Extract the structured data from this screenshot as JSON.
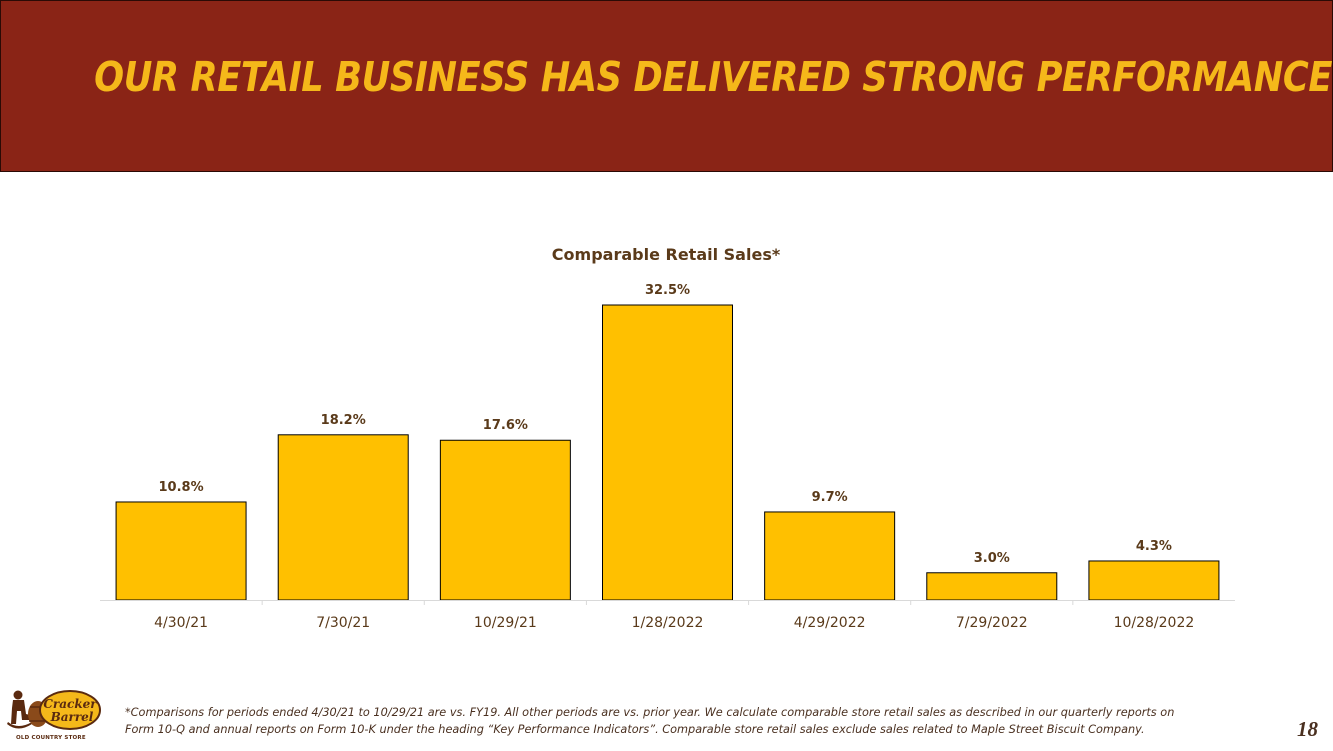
{
  "slide": {
    "title": "OUR RETAIL BUSINESS HAS DELIVERED STRONG PERFORMANCE",
    "footnote_line1": "*Comparisons for periods ended 4/30/21 to 10/29/21 are vs. FY19. All other periods are vs. prior year. We calculate comparable store retail sales as described in our quarterly reports on",
    "footnote_line2": "Form 10-Q and annual reports on Form 10-K under the heading “Key Performance Indicators”. Comparable store retail sales exclude sales related to Maple Street Biscuit Company.",
    "page_number": "18"
  },
  "logo": {
    "brand_line1": "Cracker",
    "brand_line2": "Barrel",
    "tagline": "OLD COUNTRY STORE"
  },
  "colors": {
    "banner": "#8a2416",
    "title": "#f5b81a",
    "bar_fill": "#ffc000",
    "bar_stroke": "#000000",
    "label_text": "#5a3a1a"
  },
  "chart_data": {
    "type": "bar",
    "title": "Comparable Retail Sales*",
    "categories": [
      "4/30/21",
      "7/30/21",
      "10/29/21",
      "1/28/2022",
      "4/29/2022",
      "7/29/2022",
      "10/28/2022"
    ],
    "values": [
      10.8,
      18.2,
      17.6,
      32.5,
      9.7,
      3.0,
      4.3
    ],
    "data_labels": [
      "10.8%",
      "18.2%",
      "17.6%",
      "32.5%",
      "9.7%",
      "3.0%",
      "4.3%"
    ],
    "unit": "%",
    "ylim": [
      0,
      35
    ],
    "grid": false,
    "legend": "none"
  }
}
